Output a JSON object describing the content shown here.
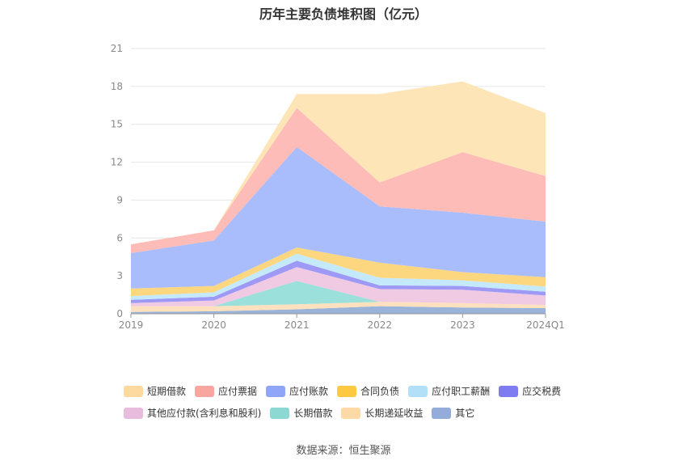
{
  "chart_data": {
    "type": "area",
    "stacked": true,
    "title": "历年主要负债堆积图（亿元）",
    "categories": [
      "2019",
      "2020",
      "2021",
      "2022",
      "2023",
      "2024Q1"
    ],
    "ylim": [
      0,
      21
    ],
    "yticks": [
      0,
      3,
      6,
      9,
      12,
      15,
      18,
      21
    ],
    "grid": true,
    "legend_position": "bottom",
    "series": [
      {
        "name": "其它",
        "color": "#9ab3d8",
        "values": [
          0.15,
          0.2,
          0.35,
          0.6,
          0.5,
          0.45
        ]
      },
      {
        "name": "长期递延收益",
        "color": "#fde0bd",
        "values": [
          0.45,
          0.4,
          0.4,
          0.35,
          0.35,
          0.25
        ]
      },
      {
        "name": "长期借款",
        "color": "#9be0da",
        "values": [
          0.0,
          0.0,
          1.85,
          0.0,
          0.0,
          0.0
        ]
      },
      {
        "name": "其他应付款(含利息和股利)",
        "color": "#f0c9e2",
        "values": [
          0.25,
          0.45,
          1.1,
          1.0,
          1.05,
          0.75
        ]
      },
      {
        "name": "应交税费",
        "color": "#9d99f5",
        "values": [
          0.25,
          0.3,
          0.5,
          0.3,
          0.3,
          0.3
        ]
      },
      {
        "name": "应付职工薪酬",
        "color": "#c4e9fb",
        "values": [
          0.3,
          0.35,
          0.55,
          0.6,
          0.45,
          0.4
        ]
      },
      {
        "name": "合同负债",
        "color": "#fdd77f",
        "values": [
          0.6,
          0.5,
          0.5,
          1.2,
          0.65,
          0.75
        ]
      },
      {
        "name": "应付账款",
        "color": "#a9bcfc",
        "values": [
          2.8,
          3.6,
          7.95,
          4.45,
          4.7,
          4.4
        ]
      },
      {
        "name": "应付票据",
        "color": "#fdbcb7",
        "values": [
          0.7,
          0.8,
          3.1,
          1.9,
          4.8,
          3.6
        ]
      },
      {
        "name": "短期借款",
        "color": "#fde5b8",
        "values": [
          0.0,
          0.0,
          1.1,
          7.0,
          5.6,
          5.0
        ]
      }
    ]
  },
  "legend": {
    "rows": [
      [
        {
          "label": "短期借款",
          "color": "#fdd9a0"
        },
        {
          "label": "应付票据",
          "color": "#f8a69f"
        },
        {
          "label": "应付账款",
          "color": "#8ea5f8"
        },
        {
          "label": "合同负债",
          "color": "#fdc940"
        },
        {
          "label": "应付职工薪酬",
          "color": "#b3e0f9"
        },
        {
          "label": "应交税费",
          "color": "#7f7bf0"
        }
      ],
      [
        {
          "label": "其他应付款(含利息和股利)",
          "color": "#e8bcdd"
        },
        {
          "label": "长期借款",
          "color": "#8ed8d3"
        },
        {
          "label": "长期递延收益",
          "color": "#fdd9a8"
        },
        {
          "label": "其它",
          "color": "#93acd9"
        }
      ]
    ]
  },
  "source": "数据来源：恒生聚源"
}
